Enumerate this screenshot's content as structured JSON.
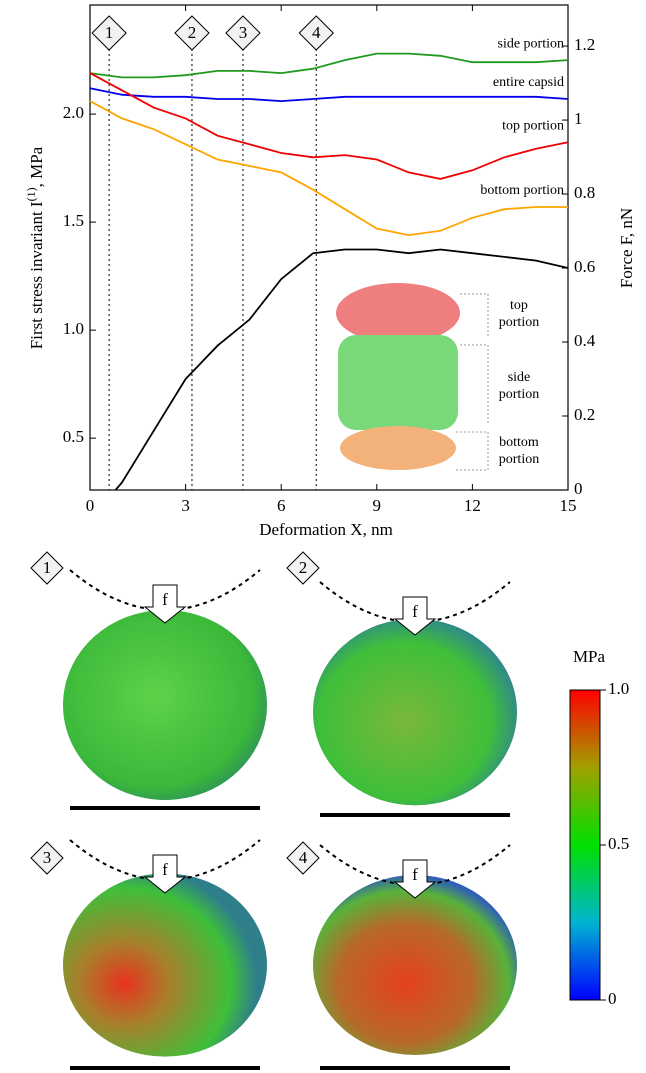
{
  "chart_data": {
    "type": "line",
    "x_label": "Deformation X, nm",
    "y_label": "First stress invariant I",
    "y_label_sup": "(1)",
    "y_label_unit": ", MPa",
    "y2_label": "Force F, nN",
    "x": [
      0,
      1,
      2,
      3,
      4,
      5,
      6,
      7,
      8,
      9,
      10,
      11,
      12,
      13,
      14,
      15
    ],
    "xlim": [
      0,
      15
    ],
    "xticks": [
      0,
      3,
      6,
      9,
      12,
      15
    ],
    "ylim": [
      0.26,
      2.505
    ],
    "yticks": [
      0.5,
      {
        "value": 1.0,
        "label": "1.0"
      },
      1.5,
      {
        "value": 2.0,
        "label": "2.0"
      }
    ],
    "y2lim": [
      0,
      1.311
    ],
    "y2ticks": [
      0,
      0.2,
      0.4,
      0.6,
      0.8,
      1,
      1.2
    ],
    "series": [
      {
        "name": "side portion",
        "color": "#1f9a1f",
        "values": [
          2.19,
          2.17,
          2.17,
          2.18,
          2.2,
          2.2,
          2.19,
          2.21,
          2.25,
          2.28,
          2.28,
          2.27,
          2.24,
          2.24,
          2.24,
          2.25
        ]
      },
      {
        "name": "entire capsid",
        "color": "#0000ee",
        "values": [
          2.12,
          2.09,
          2.08,
          2.08,
          2.07,
          2.07,
          2.06,
          2.07,
          2.08,
          2.08,
          2.08,
          2.08,
          2.08,
          2.08,
          2.08,
          2.07
        ]
      },
      {
        "name": "top portion",
        "color": "#ee0000",
        "values": [
          2.19,
          2.11,
          2.03,
          1.98,
          1.9,
          1.86,
          1.82,
          1.8,
          1.81,
          1.79,
          1.73,
          1.7,
          1.74,
          1.8,
          1.84,
          1.87
        ]
      },
      {
        "name": "bottom portion",
        "color": "#ffa500",
        "values": [
          2.06,
          1.98,
          1.93,
          1.86,
          1.79,
          1.76,
          1.73,
          1.65,
          1.56,
          1.47,
          1.44,
          1.46,
          1.52,
          1.56,
          1.57,
          1.57
        ]
      },
      {
        "color": "#000000",
        "axis": "y2",
        "x": [
          0.8,
          1,
          2,
          3,
          4,
          5,
          6,
          7,
          8,
          9,
          10,
          11,
          12,
          13,
          14,
          15
        ],
        "values": [
          0,
          0.02,
          0.16,
          0.3,
          0.39,
          0.46,
          0.57,
          0.64,
          0.65,
          0.65,
          0.64,
          0.65,
          0.64,
          0.63,
          0.62,
          0.6
        ]
      }
    ],
    "markers": [
      {
        "label": "1",
        "x": 0.6
      },
      {
        "label": "2",
        "x": 3.2
      },
      {
        "label": "3",
        "x": 4.8
      },
      {
        "label": "4",
        "x": 7.1
      }
    ],
    "inset_labels": [
      [
        "top",
        "portion"
      ],
      [
        "side",
        "portion"
      ],
      [
        "bottom",
        "portion"
      ]
    ]
  },
  "panels": {
    "labels": [
      "1",
      "2",
      "3",
      "4"
    ],
    "force_label": "f",
    "colorbar": {
      "unit": "MPa",
      "lim": [
        0,
        1.0
      ],
      "ticks": [
        0,
        0.5,
        {
          "value": 1.0,
          "label": "1.0"
        }
      ]
    }
  }
}
